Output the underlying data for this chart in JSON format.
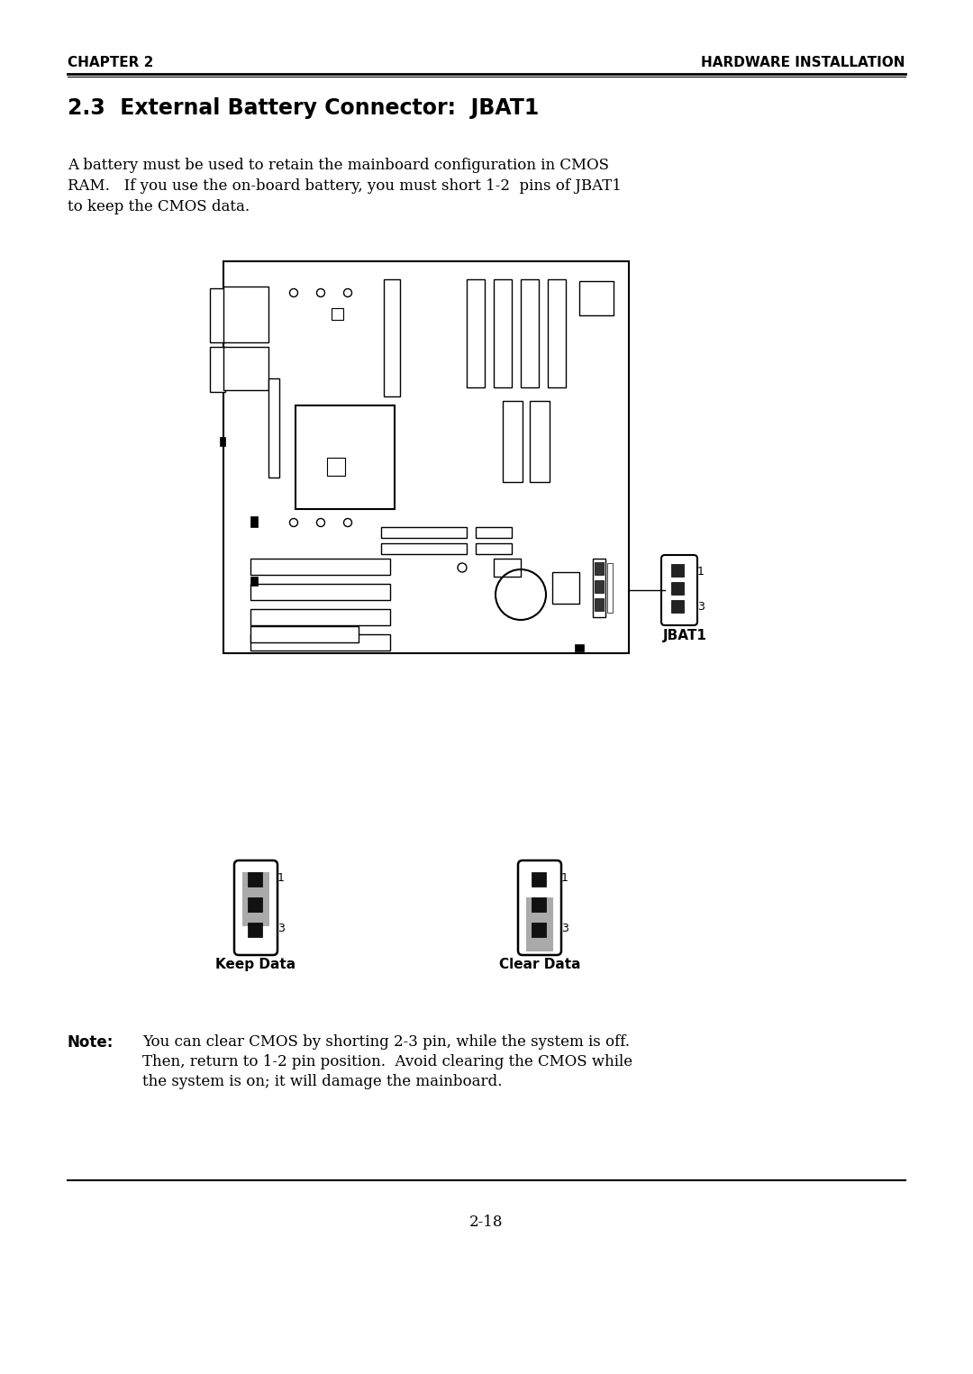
{
  "bg_color": "#ffffff",
  "header_left": "CHAPTER 2",
  "header_right": "HARDWARE INSTALLATION",
  "section_title": "2.3  External Battery Connector:  JBAT1",
  "body_text_line1": "A battery must be used to retain the mainboard configuration in CMOS",
  "body_text_line2": "RAM.   If you use the on-board battery, you must short 1-2  pins of JBAT1",
  "body_text_line3": "to keep the CMOS data.",
  "note_label": "Note:",
  "note_line1": "You can clear CMOS by shorting 2-3 pin, while the system is off.",
  "note_line2": "Then, return to 1-2 pin position.  Avoid clearing the CMOS while",
  "note_line3": "the system is on; it will damage the mainboard.",
  "keep_data_label": "Keep Data",
  "clear_data_label": "Clear Data",
  "jbat1_label": "JBAT1",
  "page_number": "2-18",
  "text_color": "#000000",
  "header_fontsize": 11,
  "title_fontsize": 17,
  "body_fontsize": 12,
  "note_fontsize": 12,
  "label_fontsize": 11,
  "page_fontsize": 12
}
